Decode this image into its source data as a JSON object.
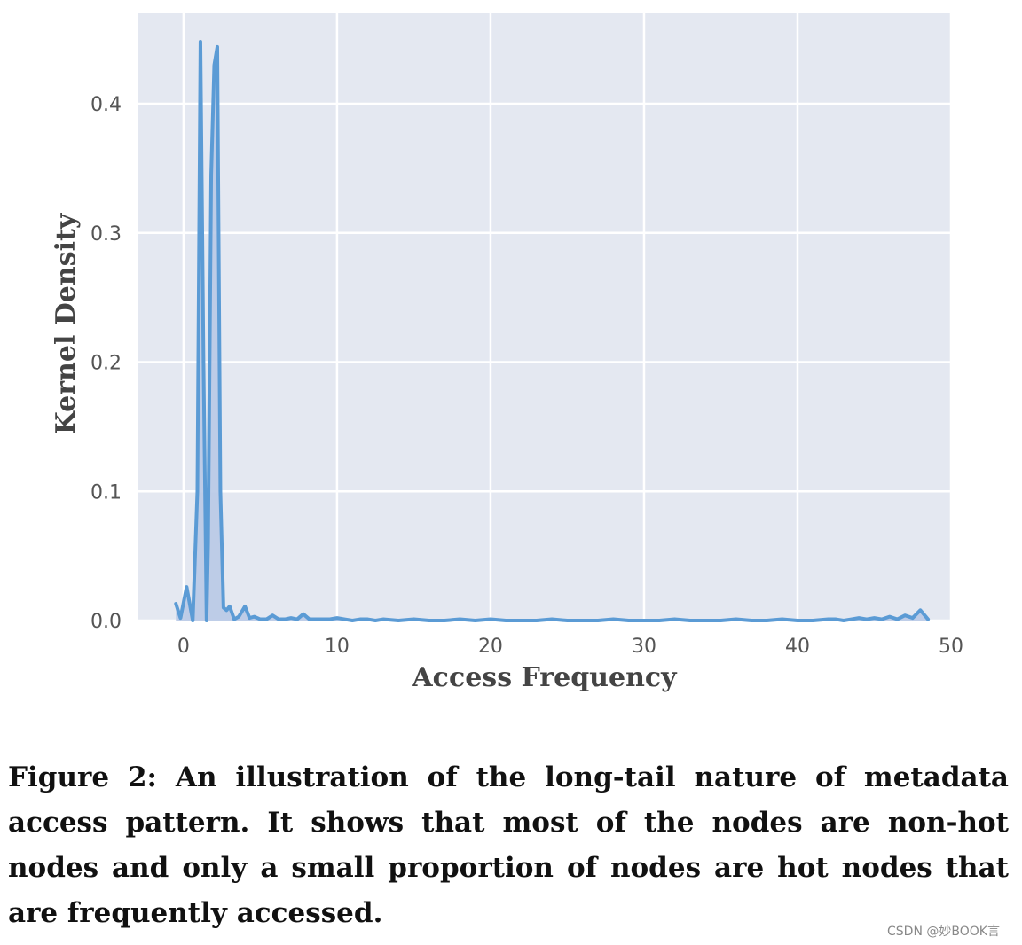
{
  "chart_data": {
    "type": "area",
    "title": "",
    "xlabel": "Access Frequency",
    "ylabel": "Kernel Density",
    "xlim": [
      -3,
      50
    ],
    "ylim": [
      0,
      0.47
    ],
    "x_ticks": [
      0,
      10,
      20,
      30,
      40,
      50
    ],
    "x_tick_labels": [
      "0",
      "10",
      "20",
      "30",
      "40",
      "50"
    ],
    "y_ticks": [
      0,
      0.1,
      0.2,
      0.3,
      0.4
    ],
    "y_tick_labels": [
      "0.0",
      "0.1",
      "0.2",
      "0.3",
      "0.4"
    ],
    "grid": true,
    "legend": "none",
    "series": [
      {
        "color": "#5b9bd5",
        "fill": "#b8c9e6",
        "x": [
          -0.5,
          -0.2,
          0.2,
          0.6,
          0.9,
          1.1,
          1.3,
          1.5,
          1.6,
          1.8,
          2.0,
          2.2,
          2.4,
          2.6,
          2.8,
          3.0,
          3.3,
          3.6,
          4.0,
          4.3,
          4.6,
          5.0,
          5.4,
          5.8,
          6.2,
          6.6,
          7.0,
          7.4,
          7.8,
          8.2,
          8.6,
          9.0,
          9.5,
          10.0,
          10.5,
          11.0,
          11.5,
          12.0,
          12.5,
          13.0,
          14.0,
          15.0,
          16.0,
          17.0,
          18.0,
          19.0,
          20.0,
          21.0,
          22.0,
          23.0,
          24.0,
          25.0,
          26.0,
          27.0,
          28.0,
          29.0,
          30.0,
          31.0,
          32.0,
          33.0,
          34.0,
          35.0,
          36.0,
          37.0,
          38.0,
          39.0,
          40.0,
          41.0,
          42.0,
          42.5,
          43.0,
          43.5,
          44.0,
          44.5,
          45.0,
          45.5,
          46.0,
          46.5,
          47.0,
          47.5,
          48.0,
          48.5
        ],
        "y": [
          0.013,
          0.002,
          0.026,
          0.0,
          0.1,
          0.448,
          0.2,
          0.0,
          0.06,
          0.345,
          0.43,
          0.444,
          0.1,
          0.01,
          0.008,
          0.011,
          0.001,
          0.003,
          0.011,
          0.002,
          0.003,
          0.001,
          0.001,
          0.004,
          0.001,
          0.001,
          0.002,
          0.001,
          0.005,
          0.001,
          0.001,
          0.001,
          0.001,
          0.002,
          0.001,
          0.0,
          0.001,
          0.001,
          0.0,
          0.001,
          0.0,
          0.001,
          0.0,
          0.0,
          0.001,
          0.0,
          0.001,
          0.0,
          0.0,
          0.0,
          0.001,
          0.0,
          0.0,
          0.0,
          0.001,
          0.0,
          0.0,
          0.0,
          0.001,
          0.0,
          0.0,
          0.0,
          0.001,
          0.0,
          0.0,
          0.001,
          0.0,
          0.0,
          0.001,
          0.001,
          0.0,
          0.001,
          0.002,
          0.001,
          0.002,
          0.001,
          0.003,
          0.001,
          0.004,
          0.002,
          0.008,
          0.001
        ]
      }
    ]
  },
  "caption": "Figure 2: An illustration of the long-tail nature of metadata access pattern. It shows that most of the nodes are non-hot nodes and only a small proportion of nodes are hot nodes that are frequently accessed.",
  "watermark": "CSDN @妙BOOK言"
}
